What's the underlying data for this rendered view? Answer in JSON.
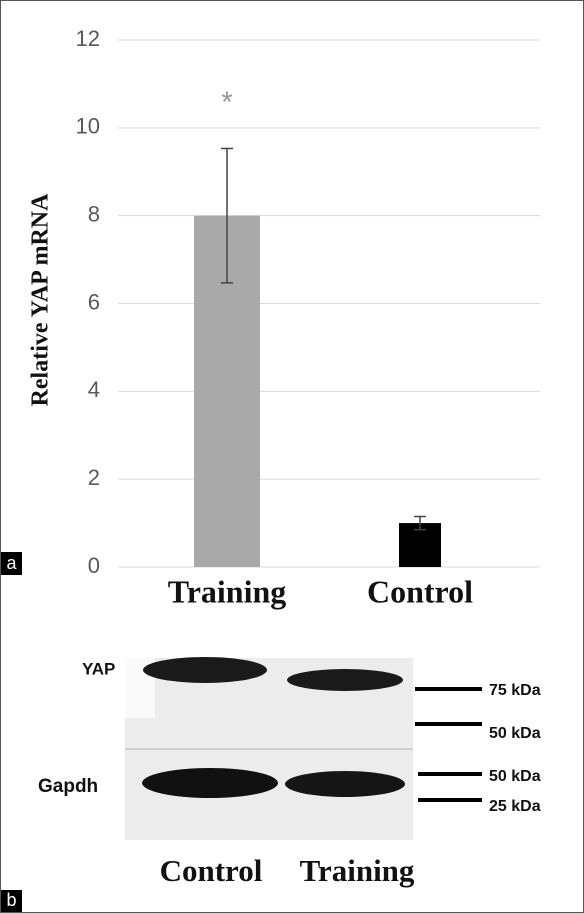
{
  "chart_data": {
    "type": "bar",
    "ylabel": "Relative YAP mRNA",
    "categories": [
      "Training",
      "Control"
    ],
    "values": [
      8,
      1
    ],
    "errors": [
      1.53,
      0.15
    ],
    "colors": [
      "#a9a9a9",
      "#000000"
    ],
    "annotations": [
      "*"
    ],
    "panel_label": "a",
    "ylim": [
      0,
      12
    ],
    "yticks": [
      0,
      2,
      4,
      6,
      8,
      10,
      12
    ],
    "grid": true
  },
  "blot": {
    "panel_label": "b",
    "rows": [
      "YAP",
      "Gapdh"
    ],
    "lanes": [
      "Control",
      "Training"
    ],
    "markers": [
      "75 kDa",
      "50 kDa",
      "50 kDa",
      "25 kDa"
    ]
  }
}
